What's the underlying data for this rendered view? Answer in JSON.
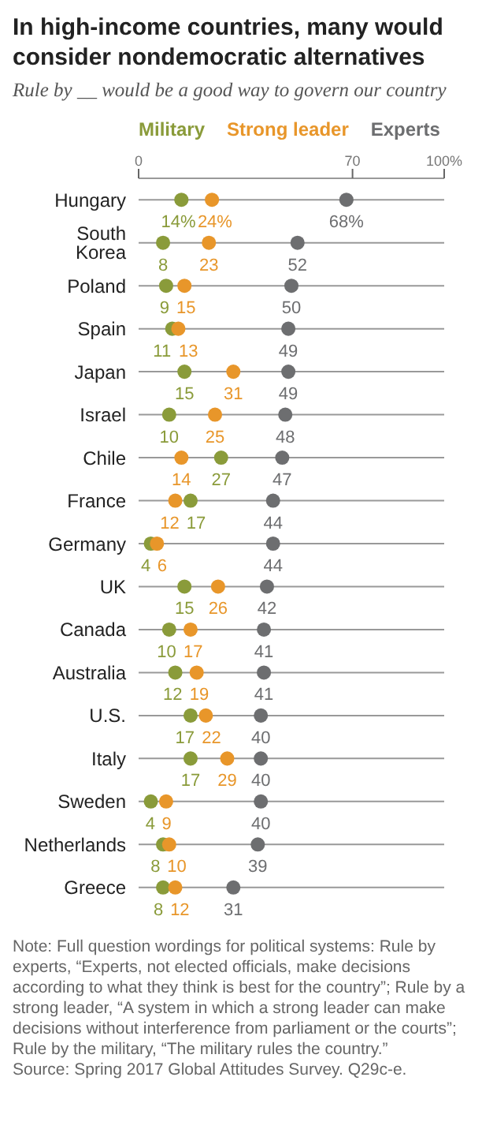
{
  "chart_data": {
    "type": "scatter",
    "title": "In high-income countries, many would consider nondemocratic alternatives",
    "subtitle": "Rule by __ would be a good way to govern our country",
    "categories": [
      "Hungary",
      "South Korea",
      "Poland",
      "Spain",
      "Japan",
      "Israel",
      "Chile",
      "France",
      "Germany",
      "UK",
      "Canada",
      "Australia",
      "U.S.",
      "Italy",
      "Sweden",
      "Netherlands",
      "Greece"
    ],
    "series": [
      {
        "name": "Military",
        "color": "#8a9b3a",
        "values": [
          14,
          8,
          9,
          11,
          15,
          10,
          27,
          17,
          4,
          15,
          10,
          12,
          17,
          17,
          4,
          8,
          8
        ],
        "value_labels": [
          "14%",
          "8",
          "9",
          "11",
          "15",
          "10",
          "27",
          "17",
          "4",
          "15",
          "10",
          "12",
          "17",
          "17",
          "4",
          "8",
          "8"
        ]
      },
      {
        "name": "Strong leader",
        "color": "#e8962a",
        "values": [
          24,
          23,
          15,
          13,
          31,
          25,
          14,
          12,
          6,
          26,
          17,
          19,
          22,
          29,
          9,
          10,
          12
        ],
        "value_labels": [
          "24%",
          "23",
          "15",
          "13",
          "31",
          "25",
          "14",
          "12",
          "6",
          "26",
          "17",
          "19",
          "22",
          "29",
          "9",
          "10",
          "12"
        ]
      },
      {
        "name": "Experts",
        "color": "#6d6e70",
        "values": [
          68,
          52,
          50,
          49,
          49,
          48,
          47,
          44,
          44,
          42,
          41,
          41,
          40,
          40,
          40,
          39,
          31
        ],
        "value_labels": [
          "68%",
          "52",
          "50",
          "49",
          "49",
          "48",
          "47",
          "44",
          "44",
          "42",
          "41",
          "41",
          "40",
          "40",
          "40",
          "39",
          "31"
        ]
      }
    ],
    "orientation": "horizontal",
    "xlim": [
      0,
      100
    ],
    "xticks": [
      0,
      70,
      {
        "value": 100,
        "label": "100%"
      }
    ],
    "grid": "y",
    "legend": "top",
    "marker": "circle",
    "annotations": [
      "Note: Full question wordings for political systems: Rule by experts, “Experts, not elected officials, make decisions according to what they think is best for the country”; Rule by a strong leader, “A system in which a strong leader can make decisions without interference from parliament or the courts”; Rule by the military, “The military rules the country.”",
      "Source: Spring 2017 Global Attitudes Survey. Q29c-e."
    ]
  }
}
